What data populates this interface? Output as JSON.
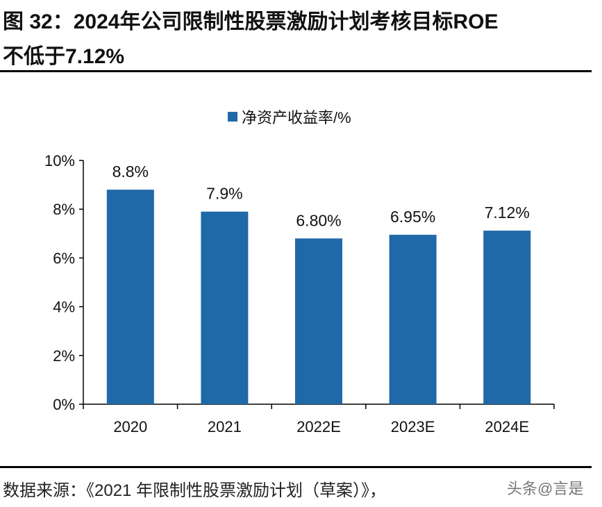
{
  "header": {
    "title_line1": "图  32：2024年公司限制性股票激励计划考核目标ROE",
    "title_line2": "不低于7.12%"
  },
  "footer": {
    "source": "数据来源：《2021 年限制性股票激励计划（草案）》，",
    "watermark": "头条@言是"
  },
  "chart_data": {
    "type": "bar",
    "categories": [
      "2020",
      "2021",
      "2022E",
      "2023E",
      "2024E"
    ],
    "series": [
      {
        "name": "净资产收益率/%",
        "values": [
          8.8,
          7.9,
          6.8,
          6.95,
          7.12
        ],
        "labels": [
          "8.8%",
          "7.9%",
          "6.80%",
          "6.95%",
          "7.12%"
        ]
      }
    ],
    "yticks": [
      "0%",
      "2%",
      "4%",
      "6%",
      "8%",
      "10%"
    ],
    "ylim": [
      0,
      10
    ],
    "grid": false,
    "legend": "top-center",
    "color": "#1F69A8"
  }
}
